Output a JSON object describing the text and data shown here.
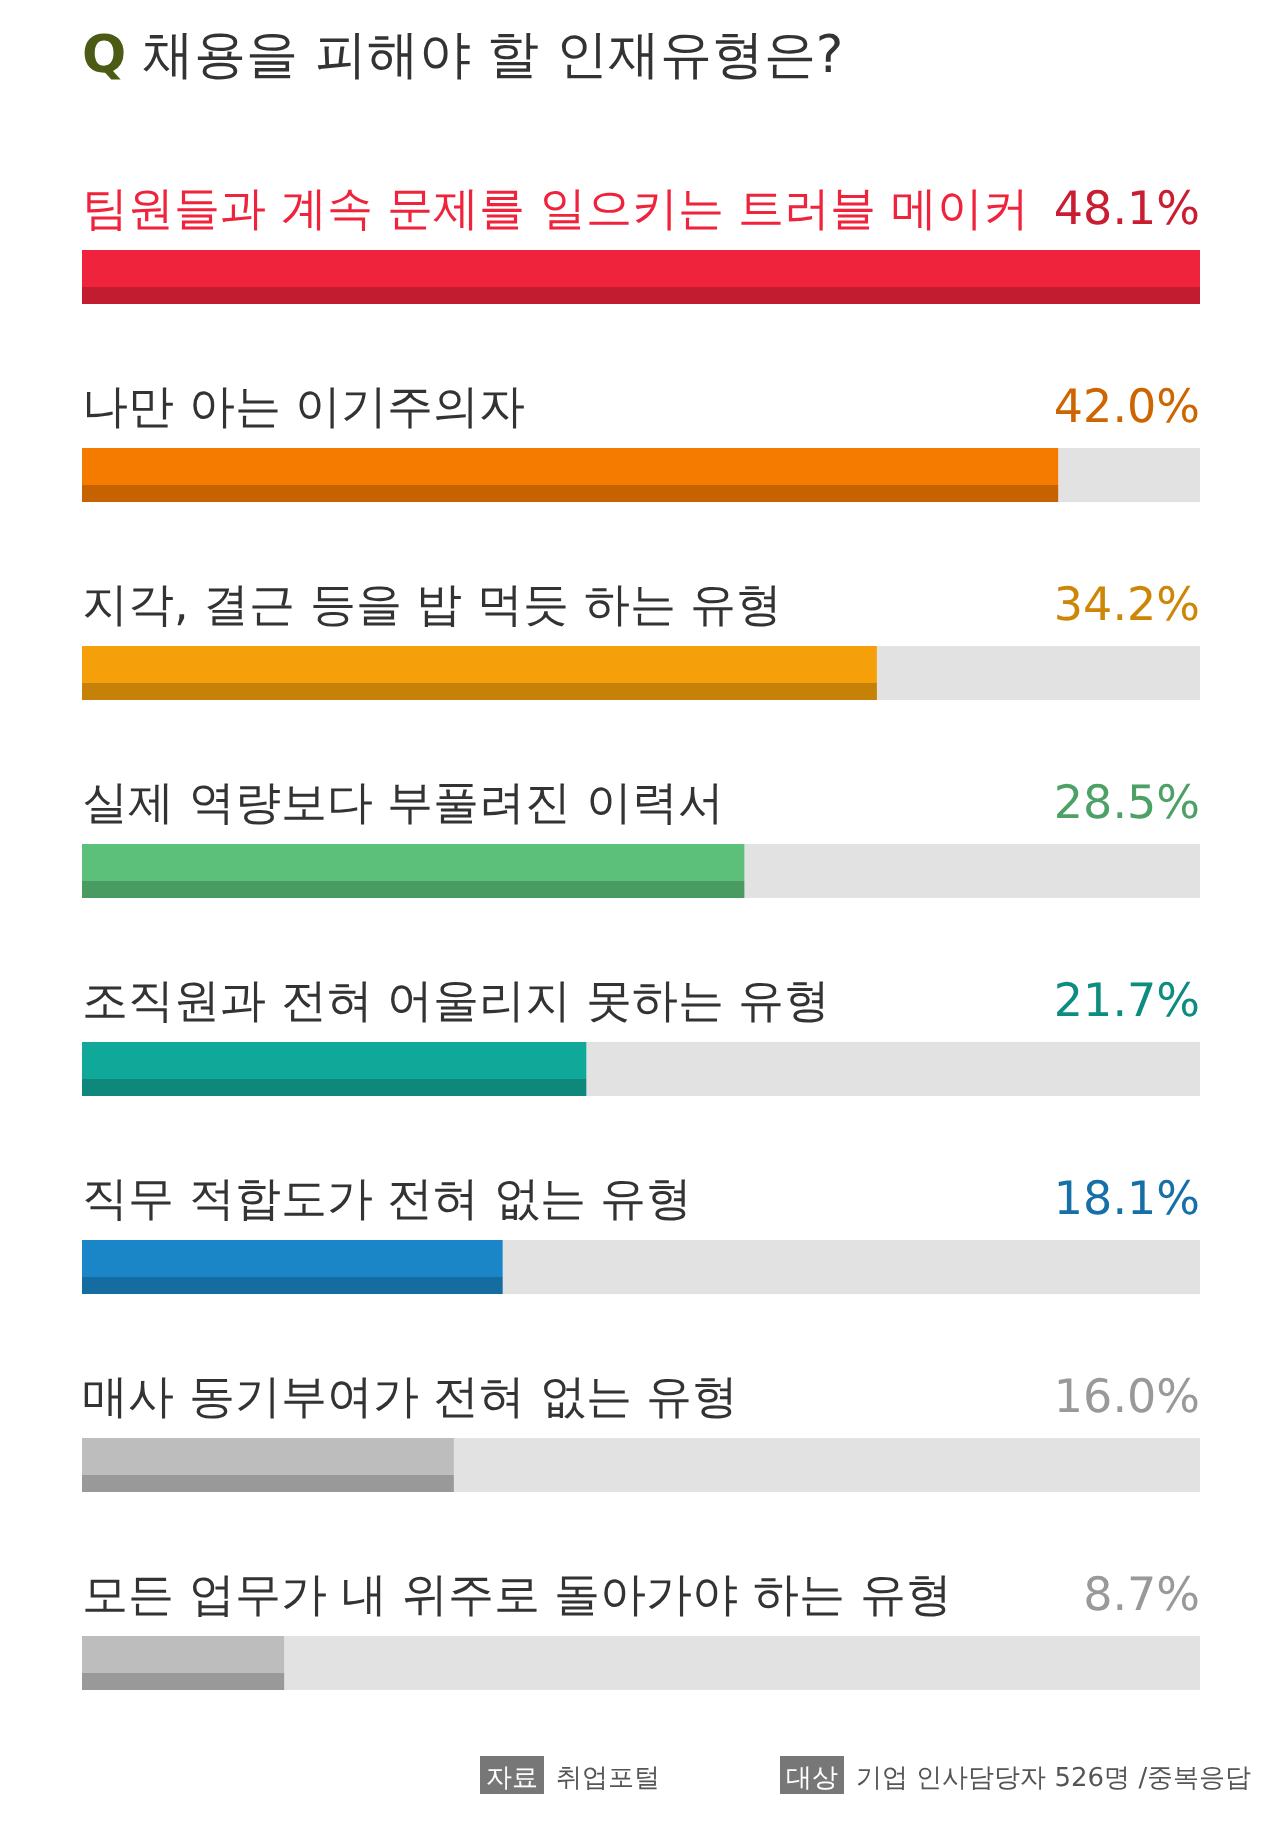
{
  "chart_data": {
    "type": "bar",
    "orientation": "horizontal",
    "title": "Q 채용을 피해야 할 인재유형은?",
    "categories": [
      "팀원들과 계속 문제를 일으키는 트러블 메이커",
      "나만 아는 이기주의자",
      "지각, 결근 등을 밥 먹듯 하는 유형",
      "실제 역량보다 부풀려진 이력서",
      "조직원과 전혀 어울리지 못하는 유형",
      "직무 적합도가 전혀 없는 유형",
      "매사 동기부여가 전혀 없는 유형",
      "모든 업무가 내 위주로 돌아가야 하는 유형"
    ],
    "values": [
      48.1,
      42.0,
      34.2,
      28.5,
      21.7,
      18.1,
      16.0,
      8.7
    ],
    "colors": [
      "#f0233c",
      "#f57a00",
      "#f5a00a",
      "#5cc07a",
      "#10a898",
      "#1a86c8",
      "#bdbdbd",
      "#bdbdbd"
    ],
    "value_labels": [
      "48.1%",
      "42.0%",
      "34.2%",
      "28.5%",
      "21.7%",
      "18.1%",
      "16.0%",
      "8.7%"
    ],
    "xlim": [
      0,
      48.1
    ],
    "tick_labels": false,
    "annotations": [
      "자료 취업포털",
      "대상 기업 인사담당자 526명 /중복응답"
    ]
  }
}
